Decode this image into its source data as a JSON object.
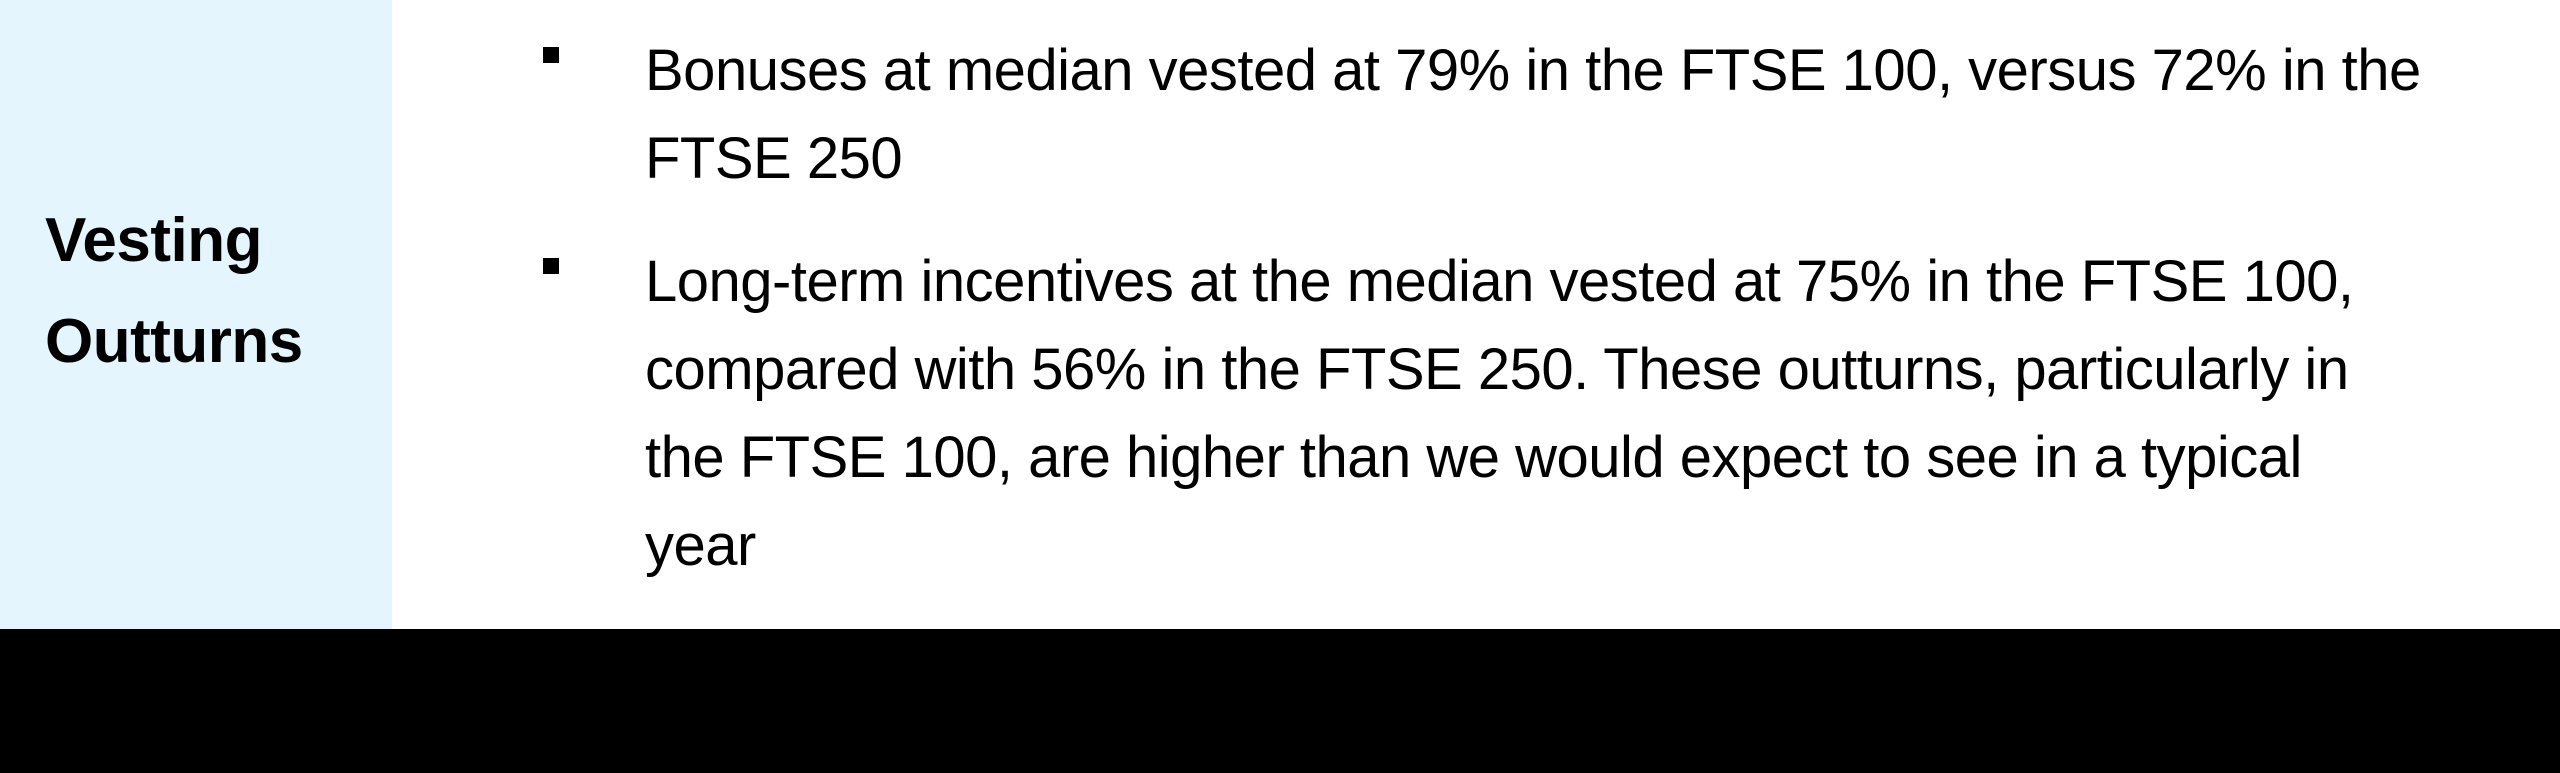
{
  "colors": {
    "sidebar_bg": "#E5F5FD",
    "content_bg": "#FFFFFF",
    "footer_bg": "#000000",
    "text": "#000000"
  },
  "sidebar": {
    "label": "Vesting Outturns",
    "label_lines": [
      "Vesting",
      "Outturns"
    ]
  },
  "main": {
    "bullets": [
      {
        "marker": "square-bullet",
        "text": "Bonuses at median vested at 79% in the FTSE 100, versus 72% in the FTSE 250",
        "lines": [
          "Bonuses at median vested at 79% in the FTSE 100, versus 72% in the",
          "FTSE 250"
        ]
      },
      {
        "marker": "square-bullet",
        "text": "Long-term incentives at the median vested at 75% in the FTSE 100, compared with 56% in the FTSE 250. These outturns, particularly in the FTSE 100, are higher than we would expect to see in a typical year",
        "lines": [
          "Long-term incentives at the median vested at 75% in the FTSE 100,",
          "compared with 56% in the FTSE 250. These outturns, particularly in",
          "the FTSE 100, are higher than we would expect to see in a typical",
          "year"
        ]
      }
    ]
  }
}
